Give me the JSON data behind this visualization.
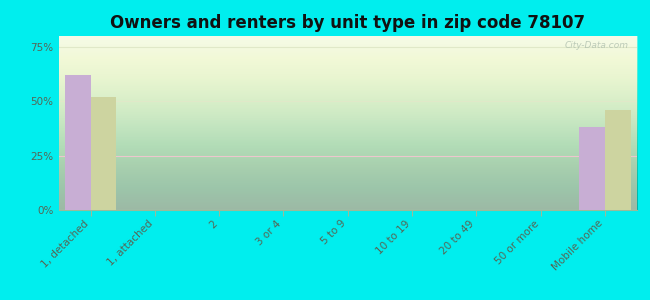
{
  "title": "Owners and renters by unit type in zip code 78107",
  "categories": [
    "1, detached",
    "1, attached",
    "2",
    "3 or 4",
    "5 to 9",
    "10 to 19",
    "20 to 49",
    "50 or more",
    "Mobile home"
  ],
  "owner_values": [
    62,
    0,
    0,
    0,
    0,
    0,
    0,
    0,
    38
  ],
  "renter_values": [
    52,
    0,
    0,
    0,
    0,
    0,
    0,
    0,
    46
  ],
  "owner_color": "#c8aed4",
  "renter_color": "#cdd4a0",
  "background_color": "#00eeee",
  "ytick_labels": [
    "0%",
    "25%",
    "50%",
    "75%"
  ],
  "ytick_values": [
    0,
    25,
    50,
    75
  ],
  "ylim": [
    0,
    80
  ],
  "bar_width": 0.4,
  "watermark": "City-Data.com",
  "title_fontsize": 12,
  "axis_fontsize": 7.5,
  "grid_color": "#e0e8c8",
  "grid_linewidth": 0.8,
  "plot_bg_top": "#f0f8e8",
  "plot_bg_bottom": "#d8eecc"
}
